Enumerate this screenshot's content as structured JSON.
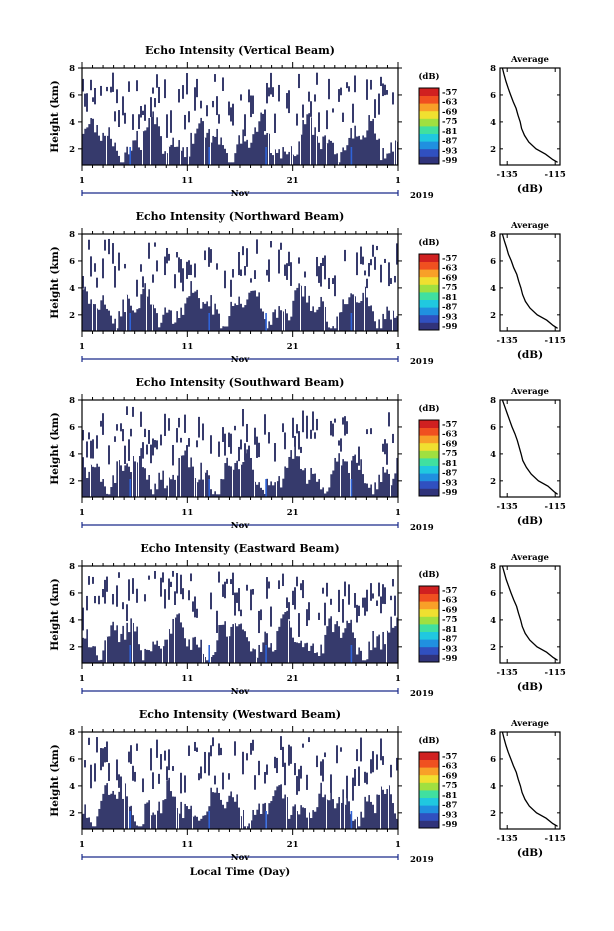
{
  "chart_data": [
    {
      "type": "heatmap",
      "title": "Echo Intensity (Vertical Beam)",
      "ylabel": "Height (km)",
      "xlabel": "",
      "month_label": "Nov",
      "year_label": "2019",
      "x_ticks": [
        "1",
        "11",
        "21",
        "1"
      ],
      "y_ticks": [
        "2",
        "4",
        "6",
        "8"
      ],
      "ylim": [
        0.8,
        8
      ],
      "colorbar": {
        "unit": "(dB)",
        "ticks": [
          "-57",
          "-63",
          "-69",
          "-75",
          "-81",
          "-87",
          "-93",
          "-99"
        ]
      },
      "profile": {
        "type": "line",
        "title": "Average",
        "xlabel": "(dB)",
        "x_ticks": [
          "-135",
          "-115"
        ],
        "y_ticks": [
          "2",
          "4",
          "6",
          "8"
        ],
        "xlim": [
          -138,
          -113
        ],
        "ylim": [
          0.8,
          8
        ],
        "points": [
          [
            -137.0,
            8.0
          ],
          [
            -136.3,
            7.5
          ],
          [
            -135.5,
            7.0
          ],
          [
            -134.6,
            6.5
          ],
          [
            -133.6,
            6.0
          ],
          [
            -132.5,
            5.5
          ],
          [
            -131.3,
            5.0
          ],
          [
            -130.5,
            4.5
          ],
          [
            -129.6,
            4.0
          ],
          [
            -129.0,
            3.5
          ],
          [
            -127.8,
            3.0
          ],
          [
            -126.0,
            2.5
          ],
          [
            -123.0,
            2.0
          ],
          [
            -119.0,
            1.6
          ],
          [
            -116.0,
            1.2
          ],
          [
            -114.0,
            1.0
          ]
        ]
      }
    },
    {
      "type": "heatmap",
      "title": "Echo Intensity (Northward Beam)",
      "ylabel": "Height (km)",
      "xlabel": "",
      "month_label": "Nov",
      "year_label": "2019",
      "x_ticks": [
        "1",
        "11",
        "21",
        "1"
      ],
      "y_ticks": [
        "2",
        "4",
        "6",
        "8"
      ],
      "ylim": [
        0.8,
        8
      ],
      "colorbar": {
        "unit": "(dB)",
        "ticks": [
          "-57",
          "-63",
          "-69",
          "-75",
          "-81",
          "-87",
          "-93",
          "-99"
        ]
      },
      "profile": {
        "type": "line",
        "title": "Average",
        "xlabel": "(dB)",
        "x_ticks": [
          "-135",
          "-115"
        ],
        "y_ticks": [
          "2",
          "4",
          "6",
          "8"
        ],
        "xlim": [
          -138,
          -113
        ],
        "ylim": [
          0.8,
          8
        ],
        "points": [
          [
            -137.0,
            8.0
          ],
          [
            -136.2,
            7.5
          ],
          [
            -135.3,
            7.0
          ],
          [
            -134.5,
            6.5
          ],
          [
            -133.3,
            6.0
          ],
          [
            -132.3,
            5.5
          ],
          [
            -131.0,
            5.0
          ],
          [
            -130.2,
            4.5
          ],
          [
            -129.3,
            4.0
          ],
          [
            -128.6,
            3.5
          ],
          [
            -127.4,
            3.0
          ],
          [
            -125.5,
            2.5
          ],
          [
            -122.5,
            2.0
          ],
          [
            -118.5,
            1.6
          ],
          [
            -115.8,
            1.2
          ],
          [
            -114.0,
            1.0
          ]
        ]
      }
    },
    {
      "type": "heatmap",
      "title": "Echo Intensity (Southward Beam)",
      "ylabel": "Height (km)",
      "xlabel": "",
      "month_label": "Nov",
      "year_label": "2019",
      "x_ticks": [
        "1",
        "11",
        "21",
        "1"
      ],
      "y_ticks": [
        "2",
        "4",
        "6",
        "8"
      ],
      "ylim": [
        0.8,
        8
      ],
      "colorbar": {
        "unit": "(dB)",
        "ticks": [
          "-57",
          "-63",
          "-69",
          "-75",
          "-81",
          "-87",
          "-93",
          "-99"
        ]
      },
      "profile": {
        "type": "line",
        "title": "Average",
        "xlabel": "(dB)",
        "x_ticks": [
          "-135",
          "-115"
        ],
        "y_ticks": [
          "2",
          "4",
          "6",
          "8"
        ],
        "xlim": [
          -138,
          -113
        ],
        "ylim": [
          0.8,
          8
        ],
        "points": [
          [
            -137.0,
            8.0
          ],
          [
            -136.0,
            7.5
          ],
          [
            -135.0,
            7.0
          ],
          [
            -134.0,
            6.5
          ],
          [
            -133.0,
            6.0
          ],
          [
            -131.8,
            5.5
          ],
          [
            -130.8,
            5.0
          ],
          [
            -130.0,
            4.5
          ],
          [
            -129.2,
            4.0
          ],
          [
            -128.5,
            3.5
          ],
          [
            -127.0,
            3.0
          ],
          [
            -125.0,
            2.5
          ],
          [
            -122.0,
            2.0
          ],
          [
            -118.0,
            1.6
          ],
          [
            -115.5,
            1.2
          ],
          [
            -114.0,
            1.0
          ]
        ]
      }
    },
    {
      "type": "heatmap",
      "title": "Echo Intensity (Eastward Beam)",
      "ylabel": "Height (km)",
      "xlabel": "",
      "month_label": "Nov",
      "year_label": "2019",
      "x_ticks": [
        "1",
        "11",
        "21",
        "1"
      ],
      "y_ticks": [
        "2",
        "4",
        "6",
        "8"
      ],
      "ylim": [
        0.8,
        8
      ],
      "colorbar": {
        "unit": "(dB)",
        "ticks": [
          "-57",
          "-63",
          "-69",
          "-75",
          "-81",
          "-87",
          "-93",
          "-99"
        ]
      },
      "profile": {
        "type": "line",
        "title": "Average",
        "xlabel": "(dB)",
        "x_ticks": [
          "-135",
          "-115"
        ],
        "y_ticks": [
          "2",
          "4",
          "6",
          "8"
        ],
        "xlim": [
          -138,
          -113
        ],
        "ylim": [
          0.8,
          8
        ],
        "points": [
          [
            -137.0,
            8.0
          ],
          [
            -136.2,
            7.5
          ],
          [
            -135.4,
            7.0
          ],
          [
            -134.4,
            6.5
          ],
          [
            -133.4,
            6.0
          ],
          [
            -132.3,
            5.5
          ],
          [
            -131.1,
            5.0
          ],
          [
            -130.3,
            4.5
          ],
          [
            -129.4,
            4.0
          ],
          [
            -128.7,
            3.5
          ],
          [
            -127.5,
            3.0
          ],
          [
            -125.6,
            2.5
          ],
          [
            -122.6,
            2.0
          ],
          [
            -118.6,
            1.6
          ],
          [
            -115.8,
            1.2
          ],
          [
            -114.0,
            1.0
          ]
        ]
      }
    },
    {
      "type": "heatmap",
      "title": "Echo Intensity (Westward Beam)",
      "ylabel": "Height (km)",
      "xlabel": "Local Time (Day)",
      "month_label": "Nov",
      "year_label": "2019",
      "x_ticks": [
        "1",
        "11",
        "21",
        "1"
      ],
      "y_ticks": [
        "2",
        "4",
        "6",
        "8"
      ],
      "ylim": [
        0.8,
        8
      ],
      "colorbar": {
        "unit": "(dB)",
        "ticks": [
          "-57",
          "-63",
          "-69",
          "-75",
          "-81",
          "-87",
          "-93",
          "-99"
        ]
      },
      "profile": {
        "type": "line",
        "title": "Average",
        "xlabel": "(dB)",
        "x_ticks": [
          "-135",
          "-115"
        ],
        "y_ticks": [
          "2",
          "4",
          "6",
          "8"
        ],
        "xlim": [
          -138,
          -113
        ],
        "ylim": [
          0.8,
          8
        ],
        "points": [
          [
            -137.0,
            8.0
          ],
          [
            -136.3,
            7.5
          ],
          [
            -135.5,
            7.0
          ],
          [
            -134.6,
            6.5
          ],
          [
            -133.5,
            6.0
          ],
          [
            -132.4,
            5.5
          ],
          [
            -131.2,
            5.0
          ],
          [
            -130.4,
            4.5
          ],
          [
            -129.5,
            4.0
          ],
          [
            -128.8,
            3.5
          ],
          [
            -127.6,
            3.0
          ],
          [
            -125.8,
            2.5
          ],
          [
            -122.8,
            2.0
          ],
          [
            -118.8,
            1.6
          ],
          [
            -116.0,
            1.2
          ],
          [
            -114.0,
            1.0
          ]
        ]
      }
    }
  ],
  "colors": {
    "low_echo": "#363a6c",
    "colormap": [
      "#30337a",
      "#3050c0",
      "#2090e0",
      "#20c8e0",
      "#40e0a0",
      "#a0e040",
      "#f0e030",
      "#f8a028",
      "#f05020",
      "#d02020"
    ]
  }
}
